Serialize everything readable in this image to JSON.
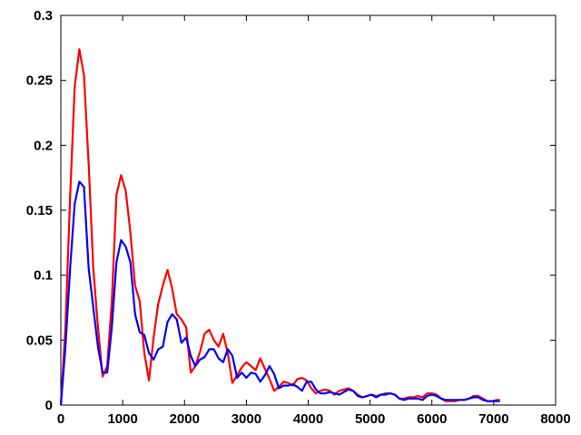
{
  "chart_data": {
    "type": "line",
    "title": "",
    "xlabel": "",
    "ylabel": "",
    "xlim": [
      0,
      8000
    ],
    "ylim": [
      0,
      0.3
    ],
    "x_ticks": [
      "0",
      "1000",
      "2000",
      "3000",
      "4000",
      "5000",
      "6000",
      "7000",
      "8000"
    ],
    "y_ticks": [
      "0",
      "0.05",
      "0.1",
      "0.15",
      "0.2",
      "0.25",
      "0.3"
    ],
    "grid": false,
    "legend": "none",
    "series": [
      {
        "color": "#ff0000",
        "x": [
          0,
          75,
          150,
          225,
          300,
          375,
          450,
          525,
          600,
          675,
          750,
          825,
          900,
          975,
          1050,
          1125,
          1200,
          1275,
          1350,
          1425,
          1500,
          1575,
          1650,
          1725,
          1800,
          1875,
          1950,
          2025,
          2100,
          2175,
          2250,
          2325,
          2400,
          2475,
          2550,
          2625,
          2700,
          2775,
          2850,
          2925,
          3000,
          3075,
          3150,
          3225,
          3300,
          3375,
          3450,
          3525,
          3600,
          3675,
          3750,
          3825,
          3900,
          3975,
          4050,
          4125,
          4200,
          4275,
          4350,
          4425,
          4500,
          4575,
          4650,
          4725,
          4800,
          4875,
          4950,
          5025,
          5100,
          5175,
          5250,
          5325,
          5400,
          5475,
          5550,
          5625,
          5700,
          5775,
          5850,
          5925,
          6000,
          6075,
          6150,
          6225,
          6300,
          6375,
          6450,
          6525,
          6600,
          6675,
          6750,
          6825,
          6900,
          6975,
          7050,
          7100
        ],
        "values": [
          0,
          0.06,
          0.16,
          0.245,
          0.274,
          0.254,
          0.185,
          0.105,
          0.06,
          0.022,
          0.03,
          0.08,
          0.162,
          0.177,
          0.165,
          0.133,
          0.092,
          0.08,
          0.04,
          0.019,
          0.052,
          0.078,
          0.092,
          0.104,
          0.09,
          0.07,
          0.066,
          0.06,
          0.025,
          0.03,
          0.041,
          0.055,
          0.058,
          0.05,
          0.045,
          0.055,
          0.04,
          0.017,
          0.023,
          0.029,
          0.033,
          0.03,
          0.027,
          0.036,
          0.028,
          0.02,
          0.011,
          0.014,
          0.018,
          0.017,
          0.015,
          0.02,
          0.021,
          0.019,
          0.013,
          0.009,
          0.011,
          0.012,
          0.011,
          0.008,
          0.011,
          0.012,
          0.013,
          0.011,
          0.008,
          0.006,
          0.007,
          0.008,
          0.007,
          0.008,
          0.009,
          0.009,
          0.008,
          0.005,
          0.005,
          0.006,
          0.006,
          0.007,
          0.006,
          0.009,
          0.009,
          0.008,
          0.005,
          0.003,
          0.003,
          0.003,
          0.004,
          0.004,
          0.005,
          0.007,
          0.007,
          0.005,
          0.003,
          0.003,
          0.004,
          0.004
        ]
      },
      {
        "color": "#0000ff",
        "x": [
          0,
          75,
          150,
          225,
          300,
          375,
          450,
          525,
          600,
          675,
          750,
          825,
          900,
          975,
          1050,
          1125,
          1200,
          1275,
          1350,
          1425,
          1500,
          1575,
          1650,
          1725,
          1800,
          1875,
          1950,
          2025,
          2100,
          2175,
          2250,
          2325,
          2400,
          2475,
          2550,
          2625,
          2700,
          2775,
          2850,
          2925,
          3000,
          3075,
          3150,
          3225,
          3300,
          3375,
          3450,
          3525,
          3600,
          3675,
          3750,
          3825,
          3900,
          3975,
          4050,
          4125,
          4200,
          4275,
          4350,
          4425,
          4500,
          4575,
          4650,
          4725,
          4800,
          4875,
          4950,
          5025,
          5100,
          5175,
          5250,
          5325,
          5400,
          5475,
          5550,
          5625,
          5700,
          5775,
          5850,
          5925,
          6000,
          6075,
          6150,
          6225,
          6300,
          6375,
          6450,
          6525,
          6600,
          6675,
          6750,
          6825,
          6900,
          6975,
          7050,
          7100
        ],
        "values": [
          0,
          0.045,
          0.105,
          0.155,
          0.172,
          0.168,
          0.105,
          0.075,
          0.045,
          0.025,
          0.025,
          0.06,
          0.11,
          0.127,
          0.122,
          0.11,
          0.07,
          0.056,
          0.054,
          0.04,
          0.035,
          0.043,
          0.045,
          0.064,
          0.07,
          0.066,
          0.048,
          0.052,
          0.038,
          0.03,
          0.035,
          0.037,
          0.043,
          0.043,
          0.036,
          0.033,
          0.043,
          0.038,
          0.021,
          0.025,
          0.021,
          0.025,
          0.024,
          0.018,
          0.023,
          0.03,
          0.024,
          0.013,
          0.015,
          0.015,
          0.016,
          0.014,
          0.011,
          0.018,
          0.018,
          0.012,
          0.009,
          0.009,
          0.01,
          0.009,
          0.008,
          0.01,
          0.012,
          0.011,
          0.007,
          0.006,
          0.007,
          0.008,
          0.006,
          0.008,
          0.008,
          0.009,
          0.008,
          0.005,
          0.004,
          0.005,
          0.005,
          0.005,
          0.004,
          0.007,
          0.008,
          0.007,
          0.005,
          0.004,
          0.004,
          0.004,
          0.004,
          0.004,
          0.005,
          0.006,
          0.006,
          0.004,
          0.003,
          0.003,
          0.003,
          0.003
        ]
      }
    ]
  }
}
